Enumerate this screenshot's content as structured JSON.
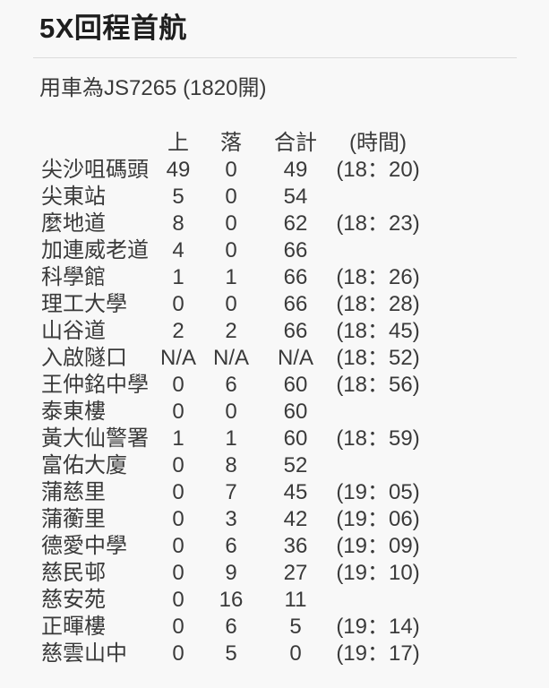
{
  "theme": {
    "background": "#f8f8f8",
    "text": "#3a3a3a",
    "title_text": "#1e1e1e",
    "divider": "#dcdcdc"
  },
  "post": {
    "title": "5X回程首航",
    "vehicle_note": "用車為JS7265 (1820開)"
  },
  "trip_table": {
    "column_headers": {
      "station": "",
      "board": "上",
      "alight": "落",
      "total": "合計",
      "time": "(時間)"
    },
    "rows": [
      {
        "station": "尖沙咀碼頭",
        "board": "49",
        "alight": "0",
        "total": "49",
        "time": "(18：20)"
      },
      {
        "station": "尖東站",
        "board": "5",
        "alight": "0",
        "total": "54",
        "time": ""
      },
      {
        "station": "麼地道",
        "board": "8",
        "alight": "0",
        "total": "62",
        "time": "(18：23)"
      },
      {
        "station": "加連威老道",
        "board": "4",
        "alight": "0",
        "total": "66",
        "time": ""
      },
      {
        "station": "科學館",
        "board": "1",
        "alight": "1",
        "total": "66",
        "time": "(18：26)"
      },
      {
        "station": "理工大學",
        "board": "0",
        "alight": "0",
        "total": "66",
        "time": "(18：28)"
      },
      {
        "station": "山谷道",
        "board": "2",
        "alight": "2",
        "total": "66",
        "time": "(18：45)"
      },
      {
        "station": "入啟隧口",
        "board": "N/A",
        "alight": "N/A",
        "total": "N/A",
        "time": "(18：52)"
      },
      {
        "station": "王仲銘中學",
        "board": "0",
        "alight": "6",
        "total": "60",
        "time": "(18：56)"
      },
      {
        "station": "泰東樓",
        "board": "0",
        "alight": "0",
        "total": "60",
        "time": ""
      },
      {
        "station": "黃大仙警署",
        "board": "1",
        "alight": "1",
        "total": "60",
        "time": "(18：59)"
      },
      {
        "station": "富佑大廈",
        "board": "0",
        "alight": "8",
        "total": "52",
        "time": ""
      },
      {
        "station": "蒲慈里",
        "board": "0",
        "alight": "7",
        "total": "45",
        "time": "(19：05)"
      },
      {
        "station": "蒲蘅里",
        "board": "0",
        "alight": "3",
        "total": "42",
        "time": "(19：06)"
      },
      {
        "station": "德愛中學",
        "board": "0",
        "alight": "6",
        "total": "36",
        "time": "(19：09)"
      },
      {
        "station": "慈民邨",
        "board": "0",
        "alight": "9",
        "total": "27",
        "time": "(19：10)"
      },
      {
        "station": "慈安苑",
        "board": "0",
        "alight": "16",
        "total": "11",
        "time": ""
      },
      {
        "station": "正暉樓",
        "board": "0",
        "alight": "6",
        "total": "5",
        "time": "(19：14)"
      },
      {
        "station": "慈雲山中",
        "board": "0",
        "alight": "5",
        "total": "0",
        "time": "(19：17)"
      }
    ]
  }
}
